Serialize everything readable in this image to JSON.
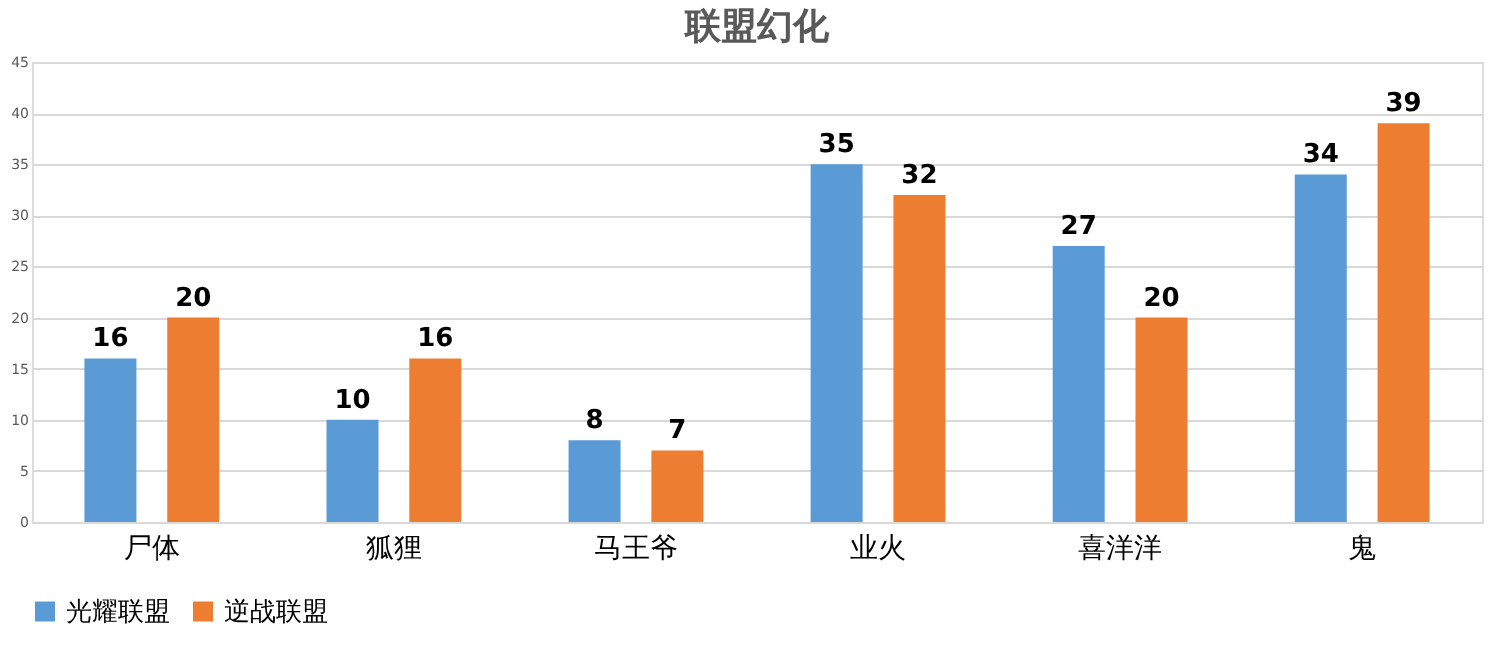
{
  "chart_data": {
    "type": "bar",
    "title": "联盟幻化",
    "categories": [
      "尸体",
      "狐狸",
      "马王爷",
      "业火",
      "喜洋洋",
      "鬼"
    ],
    "series": [
      {
        "name": "光耀联盟",
        "color": "#5b9bd5",
        "values": [
          16,
          10,
          8,
          35,
          27,
          34
        ]
      },
      {
        "name": "逆战联盟",
        "color": "#ed7d31",
        "values": [
          20,
          16,
          7,
          32,
          20,
          39
        ]
      }
    ],
    "ylim": [
      0,
      45
    ],
    "yticks": [
      0,
      5,
      10,
      15,
      20,
      25,
      30,
      35,
      40,
      45
    ],
    "grid": "y",
    "legend": "bottom",
    "data_labels": true
  }
}
